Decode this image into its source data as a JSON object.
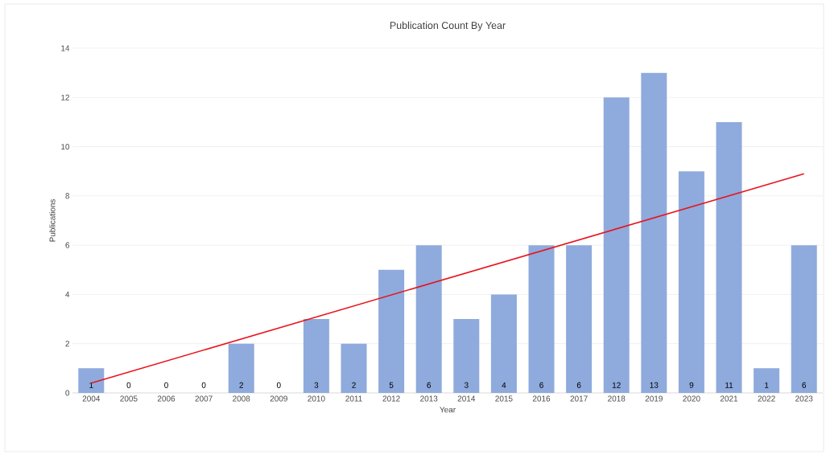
{
  "chart_data": {
    "type": "bar",
    "title": "Publication Count By Year",
    "xlabel": "Year",
    "ylabel": "Publications",
    "x": [
      2004,
      2005,
      2006,
      2007,
      2008,
      2009,
      2010,
      2011,
      2012,
      2013,
      2014,
      2015,
      2016,
      2017,
      2018,
      2019,
      2020,
      2021,
      2022,
      2023
    ],
    "xlim": [
      2003.5,
      2023.5
    ],
    "xticks": [
      2004,
      2005,
      2006,
      2007,
      2008,
      2009,
      2010,
      2011,
      2012,
      2013,
      2014,
      2015,
      2016,
      2017,
      2018,
      2019,
      2020,
      2021,
      2022,
      2023
    ],
    "series": [
      {
        "color": "#8faadc",
        "values": [
          1,
          0,
          0,
          0,
          2,
          0,
          3,
          2,
          5,
          6,
          3,
          4,
          6,
          6,
          12,
          13,
          9,
          11,
          1,
          6
        ],
        "value_labels": [
          "1",
          "0",
          "0",
          "0",
          "2",
          "0",
          "3",
          "2",
          "5",
          "6",
          "3",
          "4",
          "6",
          "6",
          "12",
          "13",
          "9",
          "11",
          "1",
          "6"
        ]
      },
      {
        "type": "line",
        "color": "#e8141c",
        "x": [
          2004,
          2023
        ],
        "values": [
          0.4,
          8.9
        ]
      }
    ],
    "ylim": [
      0,
      14
    ],
    "yticks": [
      0,
      2,
      4,
      6,
      8,
      10,
      12,
      14
    ],
    "grid": "y"
  }
}
